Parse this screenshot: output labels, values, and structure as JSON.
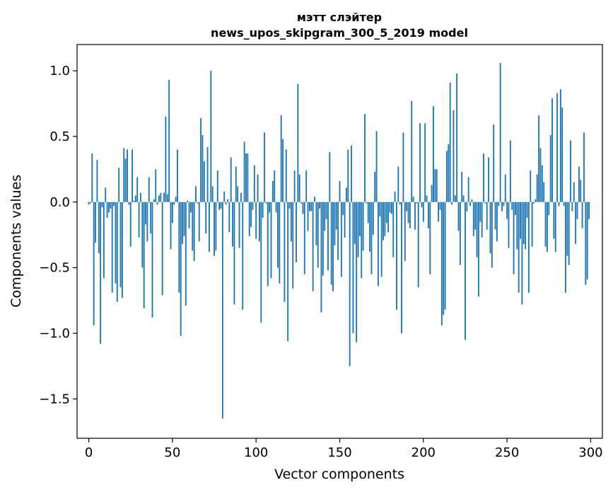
{
  "chart_data": {
    "type": "bar",
    "title": "мэтт слэйтер",
    "subtitle": "news_upos_skipgram_300_5_2019 model",
    "xlabel": "Vector components",
    "ylabel": "Components values",
    "xlim": [
      -7,
      307
    ],
    "ylim": [
      -1.8,
      1.2
    ],
    "xticks": [
      0,
      50,
      100,
      150,
      200,
      250,
      300
    ],
    "xtick_labels": [
      "0",
      "50",
      "100",
      "150",
      "200",
      "250",
      "300"
    ],
    "yticks": [
      -1.5,
      -1.0,
      -0.5,
      0.0,
      0.5,
      1.0
    ],
    "ytick_labels": [
      "−1.5",
      "−1.0",
      "−0.5",
      "0.0",
      "0.5",
      "1.0"
    ],
    "grid": false,
    "bar_color": "#1f77b4",
    "x_start": 0,
    "values": [
      -0.02,
      -0.01,
      0.37,
      -0.94,
      -0.31,
      0.32,
      -0.39,
      -1.08,
      -0.04,
      -0.58,
      0.11,
      -0.12,
      -0.08,
      -0.05,
      -0.69,
      -0.03,
      -0.62,
      -0.76,
      0.26,
      -0.65,
      -0.73,
      0.41,
      0.33,
      0.4,
      -0.02,
      -0.34,
      0.4,
      0.01,
      0.05,
      0.19,
      -0.27,
      0.07,
      -0.5,
      -0.81,
      -0.17,
      -0.3,
      0.19,
      -0.24,
      -0.88,
      0.02,
      0.25,
      -0.02,
      0.05,
      0.07,
      -0.71,
      0.07,
      0.65,
      0.06,
      0.93,
      -0.36,
      -0.16,
      -0.02,
      0.04,
      0.4,
      -0.69,
      -1.02,
      -0.32,
      -0.26,
      -0.79,
      0.01,
      -0.2,
      -0.08,
      -0.37,
      -0.45,
      0.12,
      -0.01,
      -0.3,
      0.64,
      0.51,
      0.31,
      -0.24,
      0.42,
      -0.38,
      1.0,
      0.12,
      -0.41,
      -0.37,
      0.24,
      -0.06,
      -0.05,
      -1.65,
      0.08,
      -0.02,
      0.02,
      -0.23,
      0.34,
      -0.34,
      -0.78,
      0.27,
      0.12,
      -0.35,
      0.07,
      -0.82,
      0.46,
      0.37,
      0.37,
      -0.26,
      -0.19,
      -0.06,
      0.28,
      -0.28,
      0.21,
      -0.3,
      -0.92,
      -0.12,
      0.53,
      -0.01,
      -0.64,
      -0.08,
      -0.58,
      0.16,
      0.24,
      -0.08,
      -0.5,
      -0.62,
      0.66,
      0.48,
      -0.76,
      0.4,
      -1.06,
      -0.05,
      -0.3,
      -0.66,
      0.24,
      -0.46,
      0.9,
      0.21,
      -0.01,
      -0.09,
      -0.55,
      0.24,
      -0.22,
      -0.07,
      -0.07,
      -0.68,
      0.04,
      -0.33,
      -0.5,
      -0.05,
      -0.84,
      -0.56,
      -0.22,
      -0.13,
      -0.52,
      0.38,
      -0.63,
      -0.68,
      -0.33,
      -0.21,
      -0.44,
      0.16,
      -0.57,
      -0.1,
      -0.27,
      0.11,
      0.4,
      -1.25,
      0.43,
      -1.0,
      -0.32,
      -1.07,
      -0.42,
      -0.26,
      -0.58,
      -0.37,
      0.67,
      -0.01,
      -0.16,
      -0.38,
      -0.55,
      -0.25,
      0.23,
      0.54,
      -0.64,
      -0.11,
      -0.57,
      -0.29,
      -0.26,
      -0.16,
      -0.23,
      -0.08,
      -0.09,
      -0.42,
      0.08,
      -0.82,
      0.27,
      -0.02,
      -1.0,
      0.53,
      -0.45,
      -0.07,
      -0.16,
      -0.2,
      0.77,
      0.04,
      -0.21,
      -0.01,
      -0.65,
      0.6,
      -0.04,
      -0.15,
      0.6,
      0.05,
      -0.2,
      -0.55,
      0.13,
      0.73,
      0.25,
      0.25,
      -0.15,
      -0.06,
      -0.94,
      -0.86,
      -0.82,
      0.39,
      0.44,
      0.91,
      -0.02,
      0.7,
      0.05,
      0.98,
      -0.22,
      -0.48,
      0.23,
      0.05,
      -1.05,
      -0.07,
      0.19,
      -0.03,
      0.02,
      -0.26,
      -0.21,
      -0.42,
      -0.72,
      -0.15,
      -0.27,
      0.37,
      -0.01,
      -0.21,
      0.34,
      -0.39,
      -0.5,
      0.59,
      -0.21,
      -0.3,
      -0.03,
      1.06,
      -0.07,
      -0.03,
      0.21,
      -0.13,
      -0.35,
      0.47,
      -0.06,
      -0.55,
      -0.1,
      -0.36,
      -0.69,
      -0.28,
      -0.78,
      -0.32,
      -0.36,
      -0.12,
      -0.69,
      0.24,
      -0.34,
      -0.01,
      0.02,
      0.21,
      0.66,
      0.41,
      0.28,
      0.15,
      -0.34,
      -0.38,
      -0.1,
      0.51,
      0.79,
      -0.28,
      -0.38,
      0.83,
      -0.03,
      0.86,
      0.72,
      -0.03,
      -0.69,
      -0.41,
      -0.48,
      0.47,
      -0.07,
      0.15,
      -0.32,
      -0.13,
      0.27,
      0.17,
      -0.2,
      0.53,
      -0.63,
      -0.59,
      -0.13
    ]
  }
}
